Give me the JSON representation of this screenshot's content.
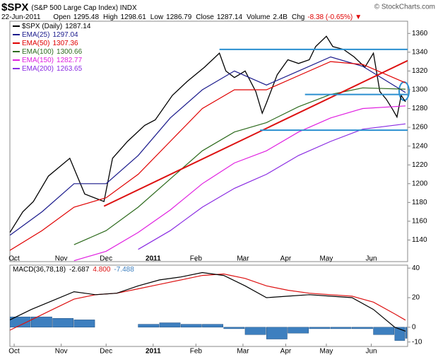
{
  "chart_data": [
    {
      "type": "line",
      "title": "$SPX",
      "subtitle": "(S&P 500 Large Cap Index) INDX",
      "source": "© StockCharts.com",
      "date": "22-Jun-2011",
      "stats": [
        {
          "label": "Open",
          "value": 1295.48
        },
        {
          "label": "High",
          "value": 1298.61
        },
        {
          "label": "Low",
          "value": 1286.79
        },
        {
          "label": "Close",
          "value": 1287.14
        },
        {
          "label": "Volume",
          "value": "2.4B"
        },
        {
          "label": "Chg",
          "value": "-8.38 (-0.65%)",
          "color": "#e00000"
        }
      ],
      "xlim": [
        0,
        186
      ],
      "xticks": [
        {
          "value": 2,
          "label": "Oct"
        },
        {
          "value": 24,
          "label": "Nov"
        },
        {
          "value": 45,
          "label": "Dec"
        },
        {
          "value": 67,
          "label": "2011"
        },
        {
          "value": 87,
          "label": "Feb"
        },
        {
          "value": 109,
          "label": "Mar"
        },
        {
          "value": 129,
          "label": "Apr"
        },
        {
          "value": 148,
          "label": "May"
        },
        {
          "value": 169,
          "label": "Jun"
        }
      ],
      "ylim": [
        1117,
        1373
      ],
      "yticks": [
        1140,
        1160,
        1180,
        1200,
        1220,
        1240,
        1260,
        1280,
        1300,
        1320,
        1340,
        1360
      ],
      "series": [
        {
          "name": "$SPX (Daily)",
          "color": "#000000",
          "x": [
            0,
            6,
            11,
            18,
            28,
            35,
            44,
            48,
            55,
            63,
            68,
            76,
            83,
            91,
            98,
            101,
            105,
            110,
            115,
            118,
            120,
            125,
            130,
            135,
            140,
            143,
            148,
            151,
            156,
            161,
            166,
            170,
            173,
            176,
            179,
            181,
            183,
            185
          ],
          "values": [
            1148,
            1170,
            1181,
            1208,
            1227,
            1189,
            1181,
            1227,
            1245,
            1262,
            1268,
            1294,
            1309,
            1324,
            1339,
            1320,
            1313,
            1320,
            1298,
            1275,
            1286,
            1316,
            1332,
            1328,
            1332,
            1346,
            1357,
            1346,
            1343,
            1335,
            1324,
            1339,
            1298,
            1290,
            1279,
            1271,
            1294,
            1287.14
          ]
        },
        {
          "name": "EMA(25)",
          "color": "#1a1a8c",
          "x": [
            0,
            15,
            30,
            45,
            60,
            75,
            90,
            105,
            120,
            135,
            150,
            165,
            185
          ],
          "values": [
            1145,
            1170,
            1200,
            1200,
            1230,
            1270,
            1300,
            1320,
            1305,
            1320,
            1335,
            1325,
            1297.04
          ]
        },
        {
          "name": "EMA(50)",
          "color": "#e00000",
          "x": [
            0,
            15,
            30,
            45,
            60,
            75,
            90,
            105,
            120,
            135,
            150,
            165,
            185
          ],
          "values": [
            1129,
            1150,
            1175,
            1185,
            1210,
            1245,
            1280,
            1300,
            1300,
            1315,
            1330,
            1327,
            1307.36
          ]
        },
        {
          "name": "EMA(100)",
          "color": "#2e6b1e",
          "x": [
            0,
            15,
            30,
            45,
            60,
            75,
            90,
            105,
            120,
            135,
            150,
            165,
            185
          ],
          "values": [
            null,
            null,
            1135,
            1150,
            1175,
            1205,
            1235,
            1255,
            1265,
            1282,
            1295,
            1302,
            1300.66
          ]
        },
        {
          "name": "EMA(150)",
          "color": "#e020e0",
          "x": [
            0,
            15,
            30,
            45,
            60,
            75,
            90,
            105,
            120,
            135,
            150,
            165,
            185
          ],
          "values": [
            null,
            null,
            1118,
            1128,
            1148,
            1172,
            1200,
            1222,
            1235,
            1255,
            1270,
            1280,
            1282.77
          ]
        },
        {
          "name": "EMA(200)",
          "color": "#8a2be2",
          "x": [
            0,
            15,
            30,
            45,
            60,
            75,
            90,
            105,
            120,
            135,
            150,
            165,
            185
          ],
          "values": [
            null,
            null,
            null,
            null,
            1130,
            1150,
            1175,
            1195,
            1210,
            1230,
            1245,
            1258,
            1263.65
          ]
        }
      ],
      "trend_lines": [
        {
          "color": "#dd1111",
          "x": [
            44,
            186
          ],
          "y": [
            1176,
            1331
          ]
        },
        {
          "color": "#2a8fd0",
          "x": [
            98,
            186
          ],
          "y": [
            1343,
            1343
          ]
        },
        {
          "color": "#2a8fd0",
          "x": [
            138,
            186
          ],
          "y": [
            1295,
            1295
          ]
        },
        {
          "color": "#2a8fd0",
          "x": [
            117,
            186
          ],
          "y": [
            1257,
            1257
          ]
        }
      ]
    },
    {
      "type": "line",
      "title": "MACD(36,78,18)",
      "xlim": [
        0,
        186
      ],
      "xticks": [
        {
          "value": 2,
          "label": "Oct"
        },
        {
          "value": 24,
          "label": "Nov"
        },
        {
          "value": 45,
          "label": "Dec"
        },
        {
          "value": 67,
          "label": "2011"
        },
        {
          "value": 87,
          "label": "Feb"
        },
        {
          "value": 109,
          "label": "Mar"
        },
        {
          "value": 129,
          "label": "Apr"
        },
        {
          "value": 148,
          "label": "May"
        },
        {
          "value": 169,
          "label": "Jun"
        }
      ],
      "ylim": [
        -13,
        42
      ],
      "yticks": [
        -10,
        0,
        20,
        40
      ],
      "series": [
        {
          "type": "bar",
          "color": "#3d7fbf",
          "x": [
            0,
            10,
            20,
            30,
            40,
            50,
            60,
            70,
            80,
            90,
            100,
            110,
            120,
            130,
            140,
            150,
            160,
            170,
            180,
            185
          ],
          "values": [
            7,
            7,
            6,
            5,
            0,
            0,
            2,
            3,
            2,
            2,
            -1,
            -5,
            -8,
            -4,
            -1,
            -1,
            -1,
            -5,
            -9,
            -7.488
          ]
        },
        {
          "type": "line",
          "color": "#dd1111",
          "x": [
            0,
            10,
            20,
            30,
            40,
            50,
            60,
            70,
            80,
            90,
            100,
            110,
            120,
            130,
            140,
            150,
            160,
            170,
            180,
            185
          ],
          "values": [
            -2,
            5,
            12,
            19,
            22,
            23,
            26,
            29,
            32,
            35,
            36,
            33,
            28,
            25,
            23,
            22,
            21,
            17,
            9,
            4.8
          ],
          "last_value_label": "4.800"
        },
        {
          "type": "line",
          "color": "#000000",
          "x": [
            0,
            10,
            20,
            30,
            40,
            50,
            60,
            70,
            80,
            90,
            100,
            110,
            120,
            130,
            140,
            150,
            160,
            170,
            180,
            185
          ],
          "values": [
            5,
            12,
            18,
            24,
            22,
            23,
            28,
            32,
            34,
            37,
            35,
            28,
            20,
            21,
            22,
            21,
            20,
            12,
            0,
            -2.687
          ]
        }
      ]
    }
  ]
}
